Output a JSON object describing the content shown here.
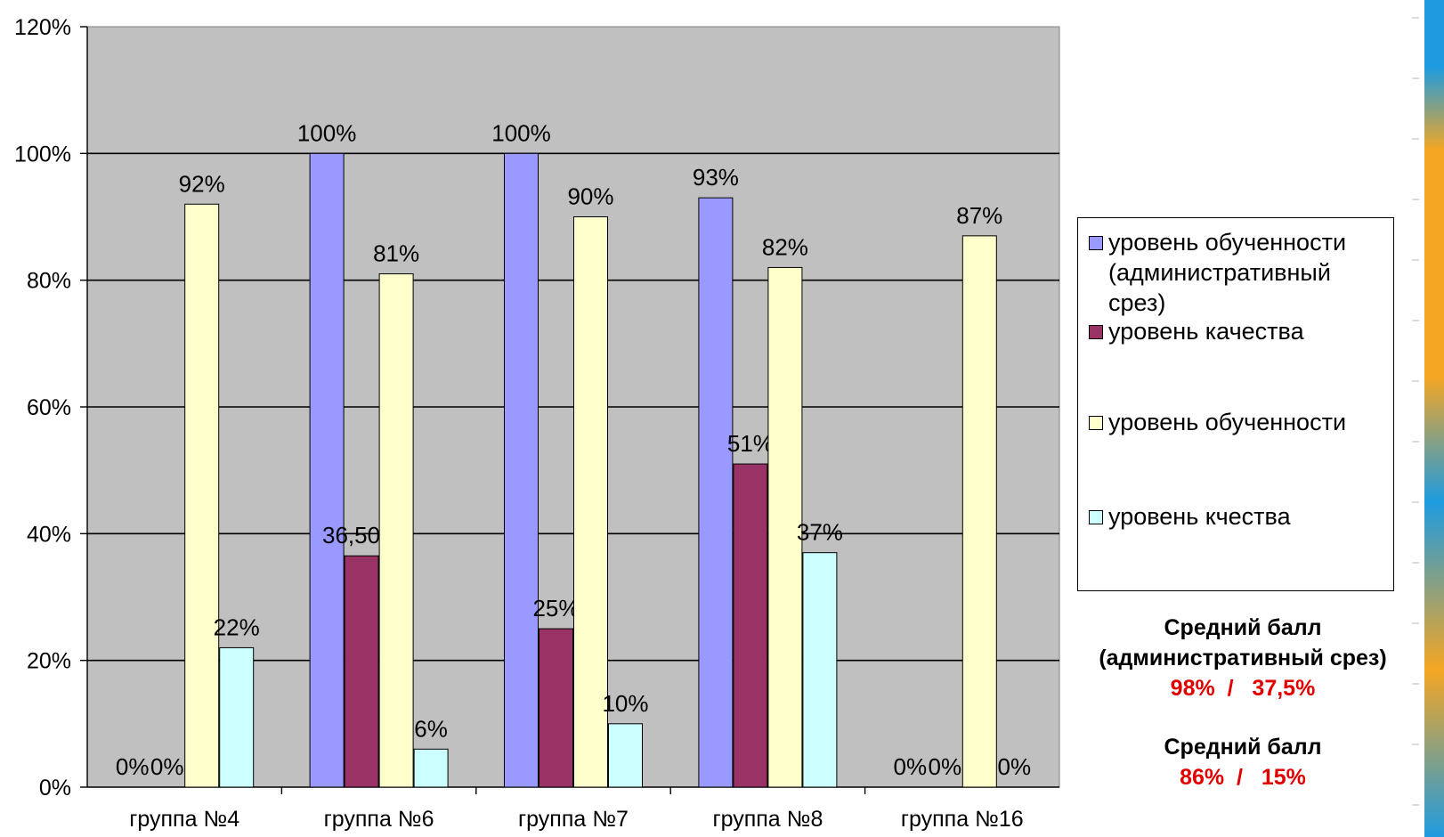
{
  "chart_data": {
    "type": "bar",
    "categories": [
      "группа №4",
      "группа №6",
      "группа №7",
      "группа №8",
      "группа №16"
    ],
    "series": [
      {
        "name": "уровень обученности (административный срез)",
        "values": [
          0,
          100,
          100,
          93,
          0
        ],
        "color": "#9999ff"
      },
      {
        "name": "уровень качества",
        "values": [
          0,
          36.5,
          25,
          51,
          0
        ],
        "color": "#993366"
      },
      {
        "name": "уровень обученности",
        "values": [
          92,
          81,
          90,
          82,
          87
        ],
        "color": "#ffffcc"
      },
      {
        "name": "уровень кчества",
        "values": [
          22,
          6,
          10,
          37,
          0
        ],
        "color": "#ccffff"
      }
    ],
    "data_labels": [
      [
        "0%",
        "100%",
        "100%",
        "93%",
        "0%"
      ],
      [
        "0%",
        "36,50%",
        "25%",
        "51%",
        "0%"
      ],
      [
        "92%",
        "81%",
        "90%",
        "82%",
        "87%"
      ],
      [
        "22%",
        "6%",
        "10%",
        "37%",
        "0%"
      ]
    ],
    "y_ticks": [
      "0%",
      "20%",
      "40%",
      "60%",
      "80%",
      "100%",
      "120%"
    ],
    "ylim": [
      0,
      120
    ],
    "grid": true,
    "plot_background": "#c0c0c0",
    "legend_position": "right"
  },
  "summary": {
    "block1": {
      "title": "Средний балл",
      "subtitle": "(административный срез)",
      "value_a": "98%",
      "separator": "/",
      "value_b": "37,5%"
    },
    "block2": {
      "title": "Средний балл",
      "value_a": "86%",
      "separator": "/",
      "value_b": "15%"
    }
  }
}
